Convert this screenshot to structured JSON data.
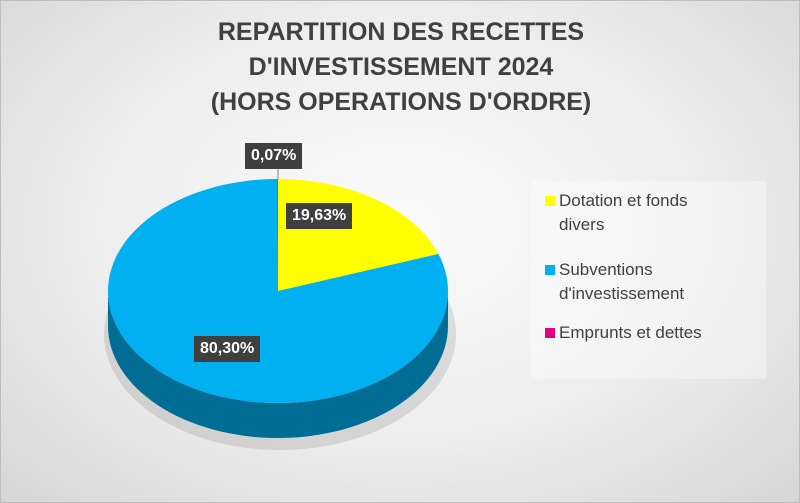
{
  "chart_data": {
    "type": "pie",
    "title": "REPARTITION DES RECETTES\nD'INVESTISSEMENT 2024\n(HORS OPERATIONS D'ORDRE)",
    "categories": [
      "Dotation et  fonds divers",
      "Subventions d'investissement",
      "Emprunts et dettes"
    ],
    "values": [
      19.63,
      80.3,
      0.07
    ],
    "data_labels": [
      "19,63%",
      "80,30%",
      "0,07%"
    ],
    "legend_labels": [
      "Dotation et  fonds\ndivers",
      "Subventions\nd'investissement",
      "Emprunts et dettes"
    ],
    "colors": [
      "#FFFF00",
      "#00B0F0",
      "#E6007E"
    ],
    "legend_position": "right",
    "style": "3d"
  }
}
